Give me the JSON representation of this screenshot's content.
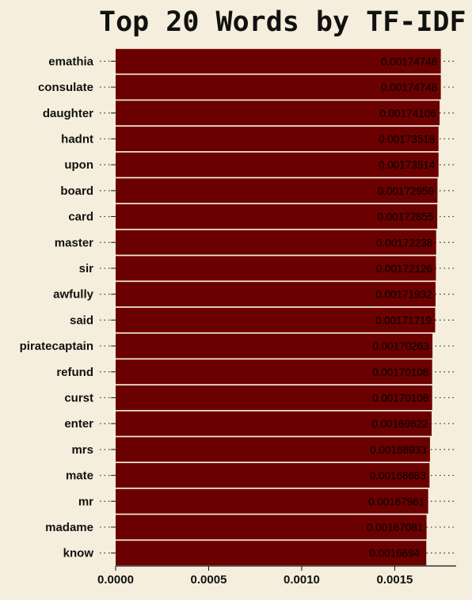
{
  "chart_data": {
    "type": "bar",
    "orientation": "horizontal",
    "title": "Top 20 Words by TF-IDF",
    "xlabel": "",
    "ylabel": "",
    "xlim": [
      0,
      0.00183
    ],
    "xticks": [
      0.0,
      0.0005,
      0.001,
      0.0015
    ],
    "xtick_labels": [
      "0.0000",
      "0.0005",
      "0.0010",
      "0.0015"
    ],
    "grid": "dotted horizontal",
    "colors": {
      "bar": "#6b0000",
      "background": "#f5eedc",
      "text": "#111111"
    },
    "categories": [
      "emathia",
      "consulate",
      "daughter",
      "hadnt",
      "upon",
      "board",
      "card",
      "master",
      "sir",
      "awfully",
      "said",
      "piratecaptain",
      "refund",
      "curst",
      "enter",
      "mrs",
      "mate",
      "mr",
      "madame",
      "know"
    ],
    "values": [
      0.00174748,
      0.00174748,
      0.00174106,
      0.00173518,
      0.00173514,
      0.00172959,
      0.00172855,
      0.00172238,
      0.00172126,
      0.00171932,
      0.00171719,
      0.00170263,
      0.00170108,
      0.00170108,
      0.00169822,
      0.00168933,
      0.00168683,
      0.00167961,
      0.00167081,
      0.0016694
    ],
    "value_labels": [
      "0.00174748",
      "0.00174748",
      "0.00174106",
      "0.00173518",
      "0.00173514",
      "0.00172959",
      "0.00172855",
      "0.00172238",
      "0.00172126",
      "0.00171932",
      "0.00171719",
      "0.00170263",
      "0.00170108",
      "0.00170108",
      "0.00169822",
      "0.00168933",
      "0.00168683",
      "0.00167961",
      "0.00167081",
      "0.0016694"
    ]
  }
}
